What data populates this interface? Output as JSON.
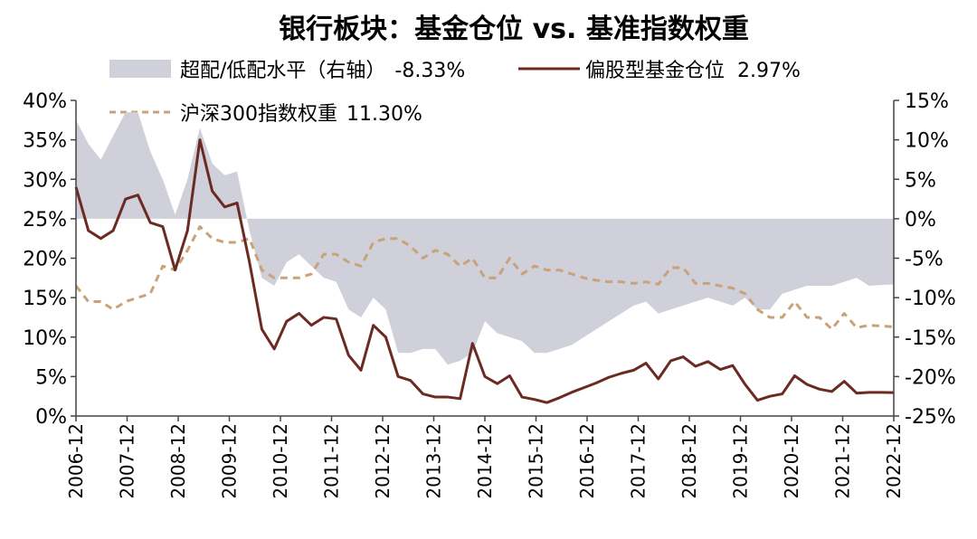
{
  "chart_data": {
    "type": "line",
    "title": "银行板块：基金仓位 vs. 基准指数权重",
    "legend_placement": "top",
    "grid": false,
    "left_axis": {
      "ylim": [
        0,
        40
      ],
      "ticks": [
        "0%",
        "5%",
        "10%",
        "15%",
        "20%",
        "25%",
        "30%",
        "35%",
        "40%"
      ]
    },
    "right_axis": {
      "ylim": [
        -25,
        15
      ],
      "ticks": [
        "-25%",
        "-20%",
        "-15%",
        "-10%",
        "-5%",
        "0%",
        "5%",
        "10%",
        "15%"
      ]
    },
    "x_axis": {
      "range": [
        "2006-12",
        "2022-12"
      ],
      "frequency": "quarterly",
      "tick_labels": [
        "2006-12",
        "2007-12",
        "2008-12",
        "2009-12",
        "2010-12",
        "2011-12",
        "2012-12",
        "2013-12",
        "2014-12",
        "2015-12",
        "2016-12",
        "2017-12",
        "2018-12",
        "2019-12",
        "2020-12",
        "2021-12",
        "2022-12"
      ]
    },
    "series": [
      {
        "name": "超配/低配水平（右轴）",
        "legend_text": "超配/低配水平（右轴）",
        "latest_label": "-8.33%",
        "type": "area",
        "axis": "right",
        "color": "#cfd0da",
        "values": [
          12.5,
          9.5,
          7.5,
          10.5,
          13.5,
          13.5,
          8.5,
          5.0,
          0.5,
          5.0,
          11.5,
          7.0,
          5.5,
          6.0,
          -1.5,
          -7.5,
          -8.5,
          -5.5,
          -4.5,
          -6.0,
          -7.5,
          -8.0,
          -11.5,
          -12.5,
          -10.0,
          -11.5,
          -17.0,
          -17.0,
          -16.5,
          -16.5,
          -18.5,
          -18.0,
          -17.0,
          -13.0,
          -14.5,
          -15.0,
          -15.5,
          -17.0,
          -17.0,
          -16.5,
          -16.0,
          -15.0,
          -14.0,
          -13.0,
          -12.0,
          -11.0,
          -10.5,
          -12.0,
          -11.5,
          -11.0,
          -10.5,
          -10.0,
          -10.5,
          -11.0,
          -10.0,
          -11.5,
          -11.5,
          -9.5,
          -9.0,
          -8.5,
          -8.5,
          -8.5,
          -8.0,
          -7.5,
          -8.5,
          -8.4,
          -8.33
        ]
      },
      {
        "name": "偏股型基金仓位",
        "legend_text": "偏股型基金仓位",
        "latest_label": "2.97%",
        "type": "line",
        "axis": "left",
        "color": "#6b2a22",
        "values": [
          29.0,
          23.5,
          22.5,
          23.5,
          27.5,
          28.0,
          24.5,
          24.0,
          18.5,
          23.5,
          35.0,
          28.5,
          26.5,
          27.0,
          19.5,
          11.0,
          8.5,
          12.0,
          13.0,
          11.5,
          12.5,
          12.3,
          7.7,
          5.8,
          11.5,
          10.0,
          5.0,
          4.5,
          2.8,
          2.4,
          2.4,
          2.2,
          9.2,
          5.0,
          4.1,
          5.1,
          2.4,
          2.1,
          1.7,
          2.3,
          3.0,
          3.6,
          4.2,
          4.9,
          5.4,
          5.8,
          6.7,
          4.7,
          7.0,
          7.5,
          6.3,
          6.9,
          5.9,
          6.4,
          4.0,
          2.0,
          2.5,
          2.8,
          5.1,
          4.0,
          3.4,
          3.1,
          4.4,
          2.9,
          3.0,
          3.0,
          2.97
        ]
      },
      {
        "name": "沪深300指数权重",
        "legend_text": "沪深300指数权重",
        "latest_label": "11.30%",
        "type": "line",
        "dashed": true,
        "axis": "left",
        "color": "#c9a27a",
        "values": [
          16.5,
          14.5,
          14.5,
          13.5,
          14.5,
          15.0,
          15.5,
          19.0,
          18.5,
          21.0,
          24.0,
          22.5,
          22.0,
          22.0,
          22.5,
          18.5,
          17.5,
          17.5,
          17.5,
          18.0,
          20.5,
          20.5,
          19.5,
          19.0,
          22.0,
          22.5,
          22.5,
          21.5,
          20.0,
          21.0,
          20.5,
          19.0,
          20.0,
          17.5,
          17.5,
          20.0,
          18.0,
          19.0,
          18.5,
          18.5,
          18.0,
          17.5,
          17.2,
          17.0,
          17.0,
          16.8,
          17.0,
          16.7,
          18.8,
          18.8,
          16.8,
          16.8,
          16.5,
          16.2,
          15.5,
          13.5,
          12.5,
          12.5,
          14.5,
          12.5,
          12.5,
          11.0,
          13.0,
          11.2,
          11.5,
          11.4,
          11.3
        ]
      }
    ]
  }
}
